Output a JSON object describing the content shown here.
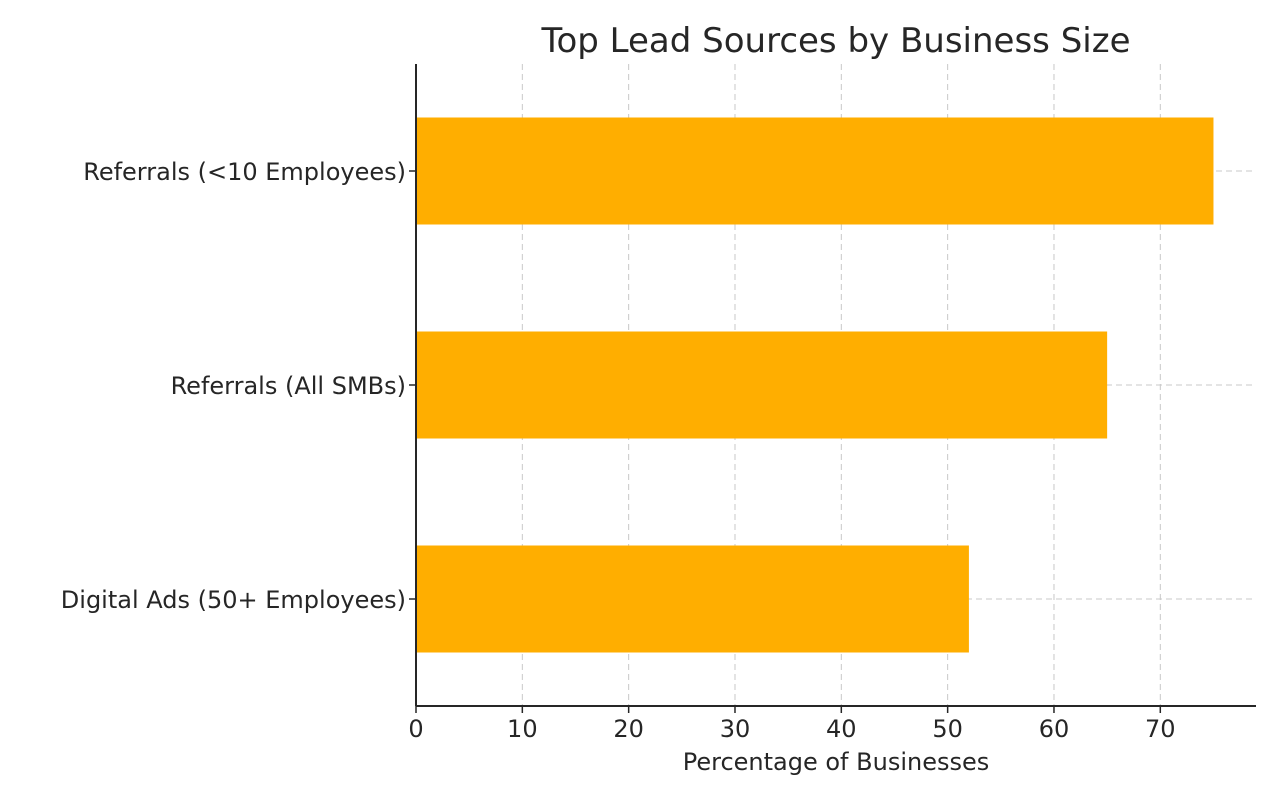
{
  "chart_data": {
    "type": "bar",
    "orientation": "horizontal",
    "title": "Top Lead Sources by Business Size",
    "xlabel": "Percentage of Businesses",
    "ylabel": "",
    "categories": [
      "Referrals (<10 Employees)",
      "Referrals (All SMBs)",
      "Digital Ads (50+ Employees)"
    ],
    "values": [
      75,
      65,
      52
    ],
    "xlim": [
      0,
      79
    ],
    "xticks": [
      0,
      10,
      20,
      30,
      40,
      50,
      60,
      70
    ],
    "grid": true,
    "legend": "none",
    "colors": {
      "bar": "#FFAE00",
      "grid": "#c8c8c8",
      "axis": "#262626",
      "text": "#262626"
    }
  }
}
